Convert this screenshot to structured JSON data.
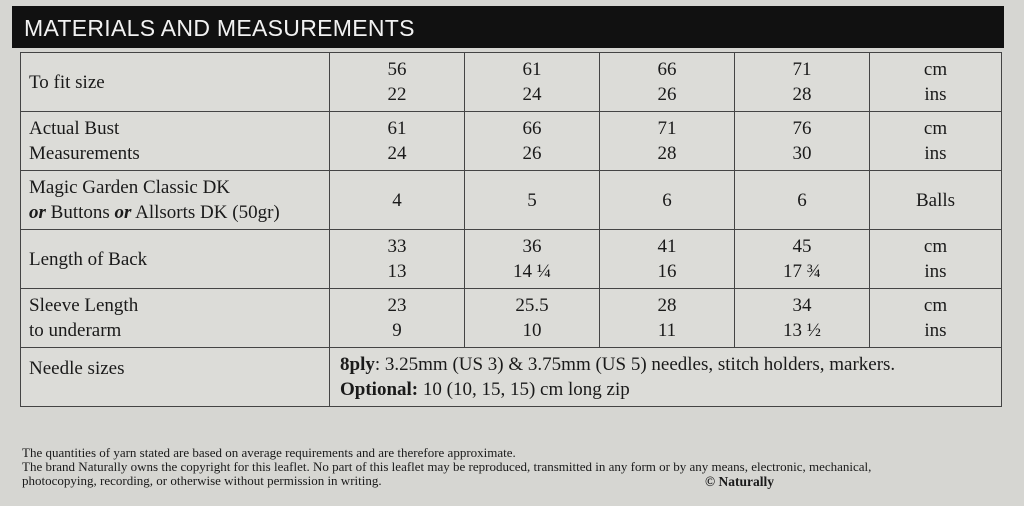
{
  "title": "MATERIALS AND MEASUREMENTS",
  "rows": [
    {
      "label": [
        "To fit size"
      ],
      "values": [
        [
          "56",
          "22"
        ],
        [
          "61",
          "24"
        ],
        [
          "66",
          "26"
        ],
        [
          "71",
          "28"
        ]
      ],
      "units": [
        "cm",
        "ins"
      ]
    },
    {
      "label": [
        "Actual Bust",
        "Measurements"
      ],
      "values": [
        [
          "61",
          "24"
        ],
        [
          "66",
          "26"
        ],
        [
          "71",
          "28"
        ],
        [
          "76",
          "30"
        ]
      ],
      "units": [
        "cm",
        "ins"
      ]
    },
    {
      "label_parts": [
        "Magic Garden Classic DK",
        "or",
        " Buttons ",
        "or",
        " Allsorts DK (50gr)"
      ],
      "values": [
        [
          "4"
        ],
        [
          "5"
        ],
        [
          "6"
        ],
        [
          "6"
        ]
      ],
      "units": [
        "Balls"
      ]
    },
    {
      "label": [
        "Length of Back"
      ],
      "values": [
        [
          "33",
          "13"
        ],
        [
          "36",
          "14 ¼"
        ],
        [
          "41",
          "16"
        ],
        [
          "45",
          "17 ¾"
        ]
      ],
      "units": [
        "cm",
        "ins"
      ]
    },
    {
      "label": [
        "Sleeve Length",
        "to underarm"
      ],
      "values": [
        [
          "23",
          "9"
        ],
        [
          "25.5",
          "10"
        ],
        [
          "28",
          "11"
        ],
        [
          "34",
          "13 ½"
        ]
      ],
      "units": [
        "cm",
        "ins"
      ]
    }
  ],
  "needles": {
    "label": "Needle sizes",
    "line1_bold": "8ply",
    "line1": ": 3.25mm (US 3) & 3.75mm (US 5) needles, stitch holders, markers.",
    "line2_bold": "Optional:",
    "line2": " 10 (10, 15, 15) cm long zip"
  },
  "footer": {
    "line1": "The quantities of yarn stated are based on average requirements and are therefore approximate.",
    "line2": "The brand Naturally owns the copyright for this leaflet. No part of this leaflet may be reproduced, transmitted in any form or by any means, electronic, mechanical,",
    "line3": "photocopying, recording, or otherwise without permission in writing.",
    "copyright": "© Naturally"
  }
}
